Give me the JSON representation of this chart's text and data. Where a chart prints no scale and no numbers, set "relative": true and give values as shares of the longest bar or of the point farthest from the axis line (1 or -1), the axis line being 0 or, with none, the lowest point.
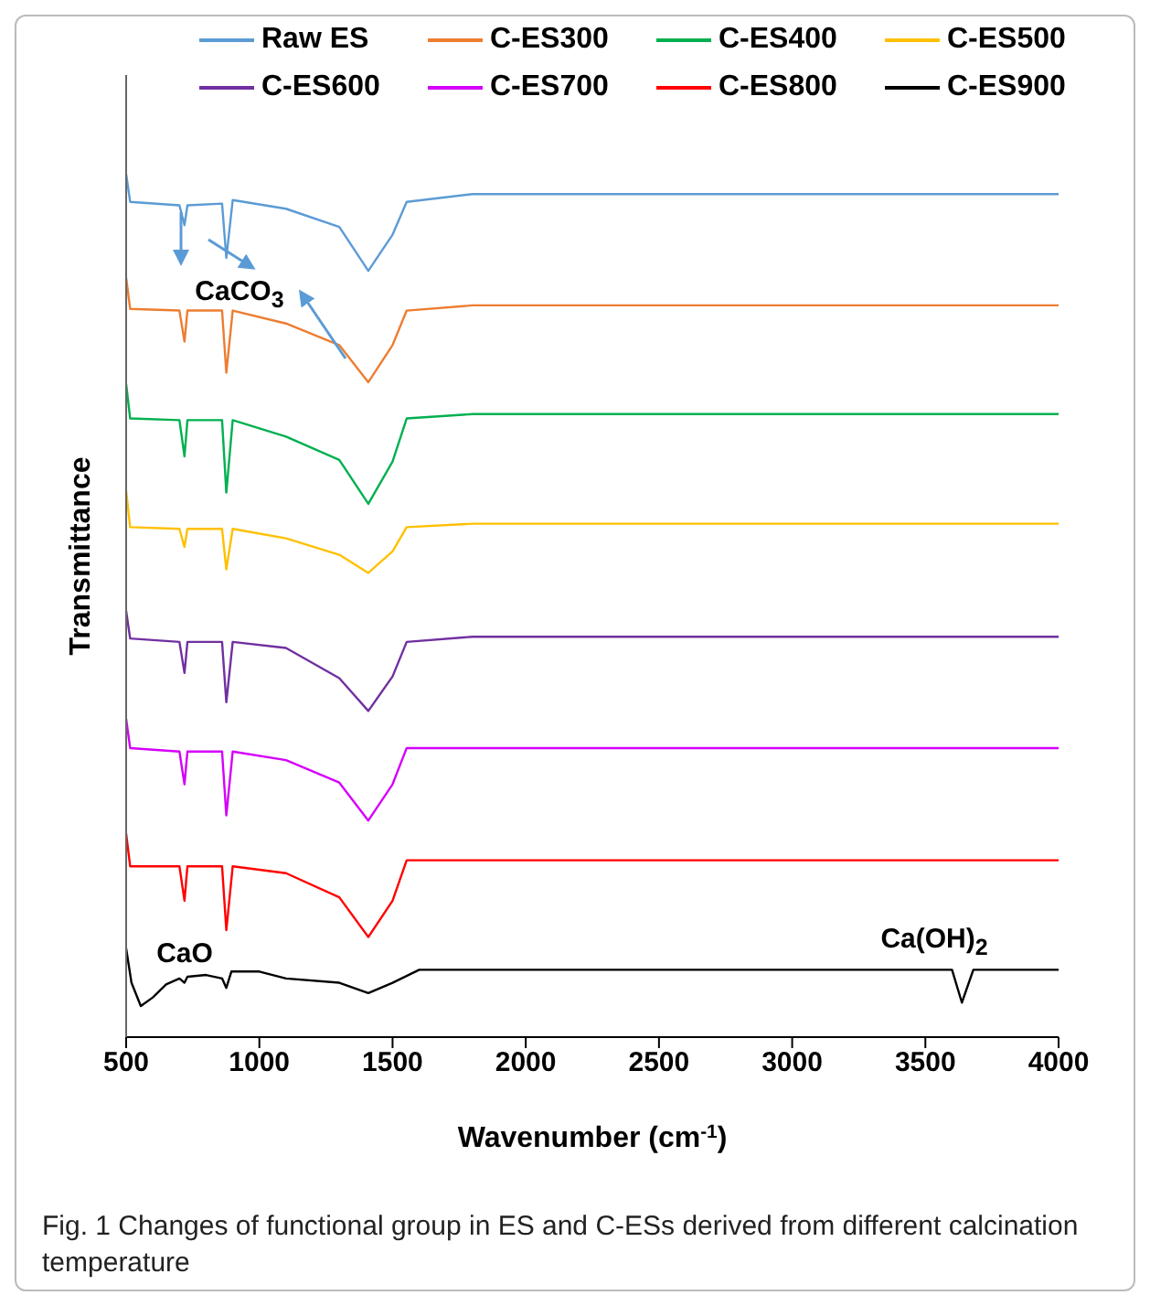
{
  "chart_data": {
    "type": "line",
    "relative": true,
    "xlabel": "Wavenumber (cm$^{-1}$)",
    "ylabel": "Transmittance",
    "xlim": [
      500,
      4000
    ],
    "xticks": [
      500,
      1000,
      1500,
      2000,
      2500,
      3000,
      3500,
      4000
    ],
    "legend": "top",
    "marker": "none",
    "line_style": "solid",
    "series": [
      {
        "name": "Raw ES",
        "color": "#5b9bd5",
        "x": [
          500,
          515,
          700,
          719,
          730,
          860,
          876,
          900,
          1100,
          1300,
          1409,
          1500,
          1553,
          1800,
          4000
        ],
        "values": [
          1.0,
          0.968,
          0.964,
          0.941,
          0.964,
          0.966,
          0.903,
          0.97,
          0.96,
          0.939,
          0.888,
          0.93,
          0.968,
          0.977,
          0.977
        ]
      },
      {
        "name": "C-ES300",
        "color": "#ed7d31",
        "x": [
          500,
          515,
          700,
          719,
          730,
          860,
          876,
          900,
          1100,
          1300,
          1409,
          1500,
          1553,
          1800,
          4000
        ],
        "values": [
          0.88,
          0.844,
          0.842,
          0.806,
          0.842,
          0.842,
          0.77,
          0.842,
          0.827,
          0.802,
          0.759,
          0.802,
          0.842,
          0.848,
          0.848
        ]
      },
      {
        "name": "C-ES400",
        "color": "#00b050",
        "x": [
          500,
          515,
          700,
          719,
          730,
          860,
          876,
          900,
          1100,
          1300,
          1409,
          1500,
          1553,
          1800,
          4000
        ],
        "values": [
          0.757,
          0.717,
          0.715,
          0.673,
          0.715,
          0.715,
          0.631,
          0.715,
          0.696,
          0.669,
          0.618,
          0.667,
          0.717,
          0.722,
          0.722
        ]
      },
      {
        "name": "C-ES500",
        "color": "#ffc000",
        "x": [
          500,
          515,
          700,
          719,
          730,
          860,
          876,
          900,
          1100,
          1300,
          1409,
          1500,
          1553,
          1800,
          4000
        ],
        "values": [
          0.633,
          0.591,
          0.589,
          0.568,
          0.589,
          0.589,
          0.542,
          0.589,
          0.578,
          0.559,
          0.538,
          0.563,
          0.591,
          0.595,
          0.595
        ]
      },
      {
        "name": "C-ES600",
        "color": "#7030a0",
        "x": [
          500,
          515,
          700,
          719,
          730,
          860,
          876,
          900,
          1100,
          1300,
          1409,
          1500,
          1553,
          1800,
          4000
        ],
        "values": [
          0.494,
          0.462,
          0.458,
          0.422,
          0.458,
          0.458,
          0.388,
          0.458,
          0.451,
          0.416,
          0.378,
          0.418,
          0.458,
          0.464,
          0.464
        ]
      },
      {
        "name": "C-ES700",
        "color": "#d500f9",
        "x": [
          500,
          515,
          700,
          719,
          730,
          860,
          876,
          900,
          1100,
          1300,
          1409,
          1500,
          1553,
          1800,
          4000
        ],
        "values": [
          0.369,
          0.335,
          0.331,
          0.293,
          0.331,
          0.331,
          0.257,
          0.331,
          0.321,
          0.295,
          0.251,
          0.293,
          0.335,
          0.335,
          0.335
        ]
      },
      {
        "name": "C-ES800",
        "color": "#ff0000",
        "x": [
          500,
          515,
          700,
          719,
          730,
          860,
          876,
          900,
          1100,
          1300,
          1409,
          1500,
          1553,
          1800,
          4000
        ],
        "values": [
          0.236,
          0.198,
          0.198,
          0.158,
          0.198,
          0.198,
          0.124,
          0.198,
          0.19,
          0.162,
          0.116,
          0.158,
          0.205,
          0.205,
          0.205
        ]
      },
      {
        "name": "C-ES900",
        "color": "#000000",
        "x": [
          500,
          520,
          555,
          600,
          650,
          700,
          719,
          730,
          800,
          860,
          876,
          895,
          1000,
          1100,
          1300,
          1409,
          1500,
          1600,
          3600,
          3637,
          3680,
          4000
        ],
        "values": [
          0.103,
          0.063,
          0.036,
          0.046,
          0.061,
          0.068,
          0.063,
          0.07,
          0.072,
          0.068,
          0.057,
          0.076,
          0.076,
          0.068,
          0.063,
          0.051,
          0.063,
          0.078,
          0.078,
          0.04,
          0.078,
          0.078
        ]
      }
    ],
    "annotations": [
      "CaCO$_{3}$",
      "CaO",
      "Ca(OH)$_{2}$",
      "Fig. 1  Changes of functional group in ES and C-ESs derived from different calcination temperature"
    ]
  }
}
